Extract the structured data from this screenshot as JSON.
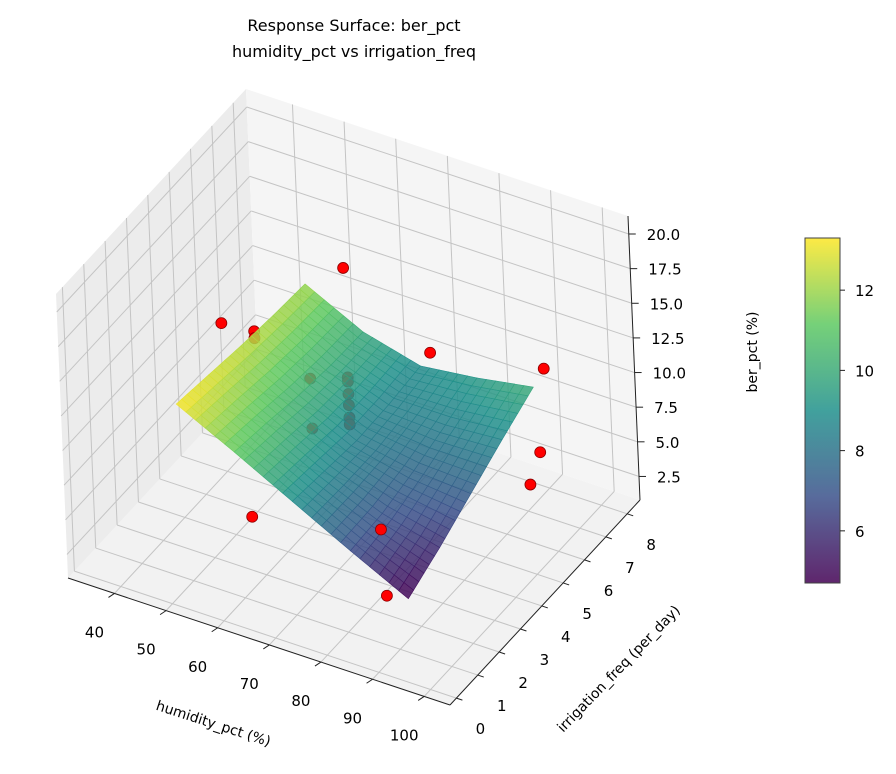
{
  "chart_data": {
    "type": "surface3d",
    "title": "Response Surface: ber_pct",
    "subtitle": "humidity_pct vs irrigation_freq",
    "xlabel": "humidity_pct (%)",
    "ylabel": "irrigation_freq (per_day)",
    "zlabel": "ber_pct (%)",
    "xlim": [
      31,
      105
    ],
    "ylim": [
      -0.3,
      8.6
    ],
    "zlim": [
      0.8,
      21.3
    ],
    "xticks": [
      "40",
      "50",
      "60",
      "70",
      "80",
      "90",
      "100"
    ],
    "yticks": [
      "0",
      "1",
      "2",
      "3",
      "4",
      "5",
      "6",
      "7",
      "8"
    ],
    "zticks": [
      "2.5",
      "5.0",
      "7.5",
      "10.0",
      "12.5",
      "15.0",
      "17.5",
      "20.0"
    ],
    "grid": true,
    "colormap": "viridis",
    "colorbar": {
      "range": [
        4.7,
        13.3
      ],
      "ticks": [
        "6",
        "8",
        "10",
        "12"
      ]
    },
    "surface": {
      "x": [
        48,
        59,
        70,
        81,
        92
      ],
      "y": [
        1,
        2.5,
        4,
        5.5,
        7
      ],
      "z": [
        [
          13.3,
          11.2,
          9.0,
          6.8,
          4.7
        ],
        [
          12.9,
          10.8,
          8.7,
          7.0,
          5.9
        ],
        [
          12.5,
          10.3,
          8.4,
          7.6,
          7.3
        ],
        [
          12.2,
          10.0,
          8.5,
          8.4,
          8.7
        ],
        [
          12.0,
          9.9,
          8.8,
          9.3,
          10.0
        ]
      ]
    },
    "points": {
      "color": "#ff0000",
      "x": [
        90,
        62,
        85,
        40,
        42,
        42,
        60,
        57,
        60,
        60,
        60,
        57,
        60,
        60,
        60,
        72,
        95,
        95,
        92
      ],
      "y": [
        0.5,
        1,
        1.5,
        5,
        6,
        6,
        6,
        5,
        6,
        6,
        6,
        5,
        6,
        6,
        6,
        7,
        6.5,
        6,
        7.5
      ],
      "z": [
        5.5,
        6.9,
        8,
        11.5,
        9.5,
        9.0,
        16.3,
        9.6,
        8.4,
        8.1,
        7.2,
        6.0,
        6.4,
        5.5,
        5.0,
        10,
        6.5,
        5.0,
        10.5
      ]
    }
  }
}
